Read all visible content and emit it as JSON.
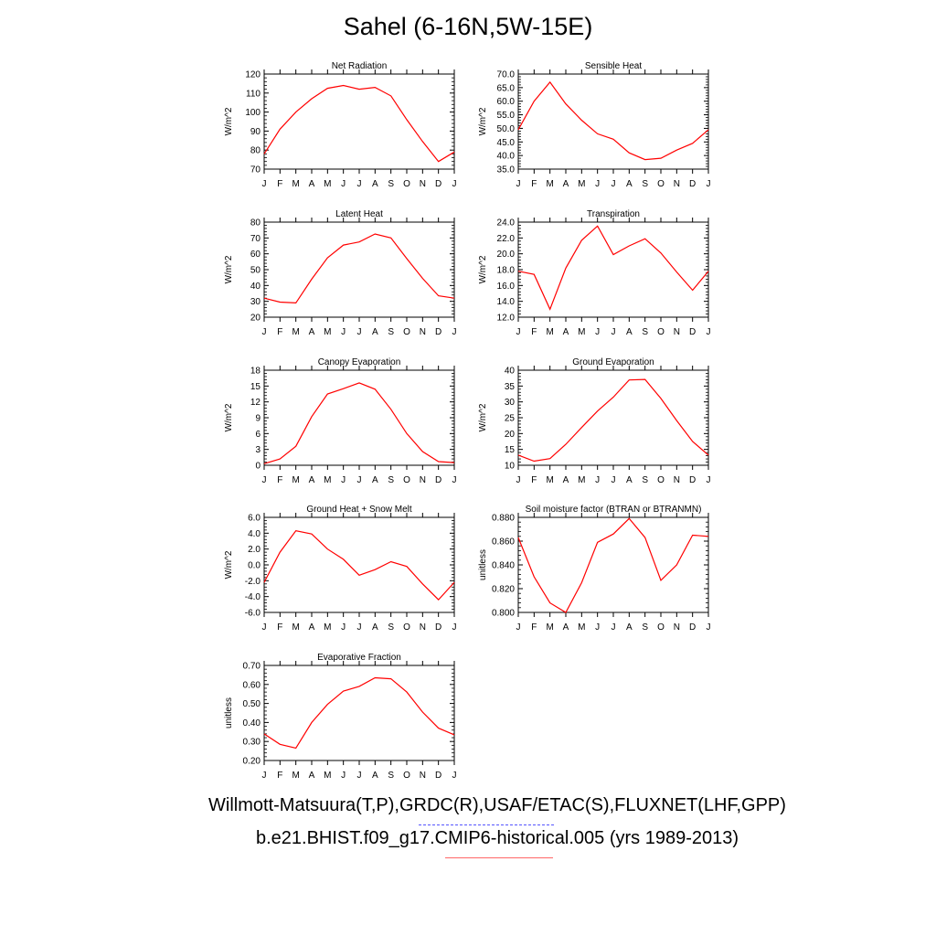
{
  "title": "Sahel (6-16N,5W-15E)",
  "footer": {
    "obs_sources": "Willmott-Matsuura(T,P),GRDC(R),USAF/ETAC(S),FLUXNET(LHF,GPP)",
    "case_label": "b.e21.BHIST.f09_g17.CMIP6-historical.005 (yrs 1989-2013)"
  },
  "colors": {
    "model_line": "#ff0000",
    "obs_legend": "#5555ff",
    "case_legend": "#ff6666"
  },
  "chart_data": [
    {
      "type": "line",
      "title": "Net Radiation",
      "ylabel": "W/m^2",
      "categories": [
        "J",
        "F",
        "M",
        "A",
        "M",
        "J",
        "J",
        "A",
        "S",
        "O",
        "N",
        "D",
        "J"
      ],
      "values": [
        78,
        91,
        100,
        107,
        112.5,
        114,
        112,
        113,
        108.5,
        96,
        84.5,
        74,
        79
      ],
      "ylim": [
        70,
        120
      ],
      "yticks": [
        "70",
        "80",
        "90",
        "100",
        "110",
        "120"
      ]
    },
    {
      "type": "line",
      "title": "Sensible Heat",
      "ylabel": "W/m^2",
      "categories": [
        "J",
        "F",
        "M",
        "A",
        "M",
        "J",
        "J",
        "A",
        "S",
        "O",
        "N",
        "D",
        "J"
      ],
      "values": [
        49.5,
        60,
        67,
        59,
        53,
        48,
        46,
        41,
        38.5,
        39,
        42,
        44.5,
        49.5
      ],
      "ylim": [
        35,
        70
      ],
      "yticks": [
        "35.0",
        "40.0",
        "45.0",
        "50.0",
        "55.0",
        "60.0",
        "65.0",
        "70.0"
      ]
    },
    {
      "type": "line",
      "title": "Latent Heat",
      "ylabel": "W/m^2",
      "categories": [
        "J",
        "F",
        "M",
        "A",
        "M",
        "J",
        "J",
        "A",
        "S",
        "O",
        "N",
        "D",
        "J"
      ],
      "values": [
        32,
        29.5,
        29,
        44,
        57.5,
        65.5,
        67.5,
        72.5,
        70,
        57,
        44.5,
        33.5,
        32
      ],
      "ylim": [
        20,
        80
      ],
      "yticks": [
        "20",
        "30",
        "40",
        "50",
        "60",
        "70",
        "80"
      ]
    },
    {
      "type": "line",
      "title": "Transpiration",
      "ylabel": "W/m^2",
      "categories": [
        "J",
        "F",
        "M",
        "A",
        "M",
        "J",
        "J",
        "A",
        "S",
        "O",
        "N",
        "D",
        "J"
      ],
      "values": [
        17.8,
        17.4,
        13,
        18.2,
        21.7,
        23.5,
        19.9,
        21,
        21.9,
        20.1,
        17.7,
        15.4,
        17.8
      ],
      "ylim": [
        12,
        24
      ],
      "yticks": [
        "12.0",
        "14.0",
        "16.0",
        "18.0",
        "20.0",
        "22.0",
        "24.0"
      ]
    },
    {
      "type": "line",
      "title": "Canopy Evaporation",
      "ylabel": "W/m^2",
      "categories": [
        "J",
        "F",
        "M",
        "A",
        "M",
        "J",
        "J",
        "A",
        "S",
        "O",
        "N",
        "D",
        "J"
      ],
      "values": [
        0.3,
        1.2,
        3.6,
        9.2,
        13.5,
        14.5,
        15.6,
        14.4,
        10.6,
        6,
        2.6,
        0.7,
        0.5
      ],
      "ylim": [
        0,
        18
      ],
      "yticks": [
        "0",
        "3",
        "6",
        "9",
        "12",
        "15",
        "18"
      ]
    },
    {
      "type": "line",
      "title": "Ground Evaporation",
      "ylabel": "W/m^2",
      "categories": [
        "J",
        "F",
        "M",
        "A",
        "M",
        "J",
        "J",
        "A",
        "S",
        "O",
        "N",
        "D",
        "J"
      ],
      "values": [
        13.2,
        11.3,
        12.1,
        16.6,
        21.9,
        27.1,
        31.5,
        36.9,
        37.1,
        31.1,
        24.1,
        17.5,
        13.2
      ],
      "ylim": [
        10,
        40
      ],
      "yticks": [
        "10",
        "15",
        "20",
        "25",
        "30",
        "35",
        "40"
      ]
    },
    {
      "type": "line",
      "title": "Ground Heat + Snow Melt",
      "ylabel": "W/m^2",
      "categories": [
        "J",
        "F",
        "M",
        "A",
        "M",
        "J",
        "J",
        "A",
        "S",
        "O",
        "N",
        "D",
        "J"
      ],
      "values": [
        -2.2,
        1.6,
        4.3,
        3.9,
        2,
        0.7,
        -1.3,
        -0.6,
        0.4,
        -0.2,
        -2.4,
        -4.4,
        -2.2
      ],
      "ylim": [
        -6,
        6
      ],
      "yticks": [
        "-6.0",
        "-4.0",
        "-2.0",
        "0.0",
        "2.0",
        "4.0",
        "6.0"
      ]
    },
    {
      "type": "line",
      "title": "Soil moisture factor (BTRAN or BTRANMN)",
      "ylabel": "unitless",
      "categories": [
        "J",
        "F",
        "M",
        "A",
        "M",
        "J",
        "J",
        "A",
        "S",
        "O",
        "N",
        "D",
        "J"
      ],
      "values": [
        0.863,
        0.83,
        0.808,
        0.8,
        0.825,
        0.859,
        0.866,
        0.879,
        0.863,
        0.827,
        0.84,
        0.865,
        0.864
      ],
      "ylim": [
        0.8,
        0.88
      ],
      "yticks": [
        "0.800",
        "0.820",
        "0.840",
        "0.860",
        "0.880"
      ]
    },
    {
      "type": "line",
      "title": "Evaporative Fraction",
      "ylabel": "unitless",
      "categories": [
        "J",
        "F",
        "M",
        "A",
        "M",
        "J",
        "J",
        "A",
        "S",
        "O",
        "N",
        "D",
        "J"
      ],
      "values": [
        0.34,
        0.285,
        0.265,
        0.4,
        0.495,
        0.565,
        0.59,
        0.635,
        0.63,
        0.56,
        0.455,
        0.37,
        0.335
      ],
      "ylim": [
        0.2,
        0.7
      ],
      "yticks": [
        "0.20",
        "0.30",
        "0.40",
        "0.50",
        "0.60",
        "0.70"
      ]
    }
  ]
}
